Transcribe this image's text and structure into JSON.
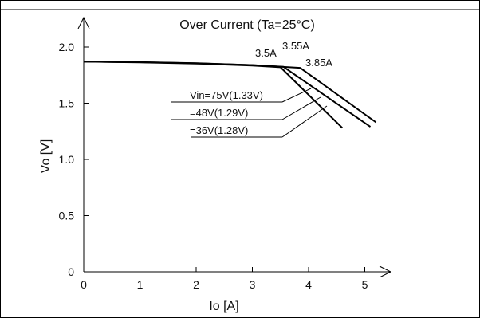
{
  "chart_data": {
    "type": "line",
    "title": "Over Current (Ta=25°C)",
    "xlabel": "Io [A]",
    "ylabel": "Vo [V]",
    "xlim": [
      0,
      5.5
    ],
    "ylim": [
      0,
      2.2
    ],
    "x_ticks": [
      0,
      1,
      2,
      3,
      4,
      5
    ],
    "y_ticks": [
      0,
      0.5,
      1.0,
      1.5,
      2.0
    ],
    "x_tick_labels": [
      "0",
      "1",
      "2",
      "3",
      "4",
      "5"
    ],
    "y_tick_labels": [
      "0",
      "0.5",
      "1.0",
      "1.5",
      "2.0"
    ],
    "grid": false,
    "series": [
      {
        "name": "Vin=75V(1.33V)",
        "x": [
          0,
          1,
          2,
          3,
          3.85,
          5.2
        ],
        "y": [
          1.87,
          1.866,
          1.857,
          1.84,
          1.815,
          1.33
        ]
      },
      {
        "name": "=48V(1.29V)",
        "x": [
          0,
          1,
          2,
          3,
          3.55,
          5.1
        ],
        "y": [
          1.87,
          1.865,
          1.855,
          1.84,
          1.825,
          1.29
        ]
      },
      {
        "name": "=36V(1.28V)",
        "x": [
          0,
          1,
          2,
          3,
          3.5,
          4.6
        ],
        "y": [
          1.87,
          1.864,
          1.853,
          1.835,
          1.82,
          1.28
        ]
      }
    ],
    "annotations": [
      {
        "text": "3.5A",
        "x": 3.5,
        "y": 1.82
      },
      {
        "text": "3.55A",
        "x": 3.55,
        "y": 1.825
      },
      {
        "text": "3.85A",
        "x": 3.85,
        "y": 1.815
      }
    ]
  }
}
